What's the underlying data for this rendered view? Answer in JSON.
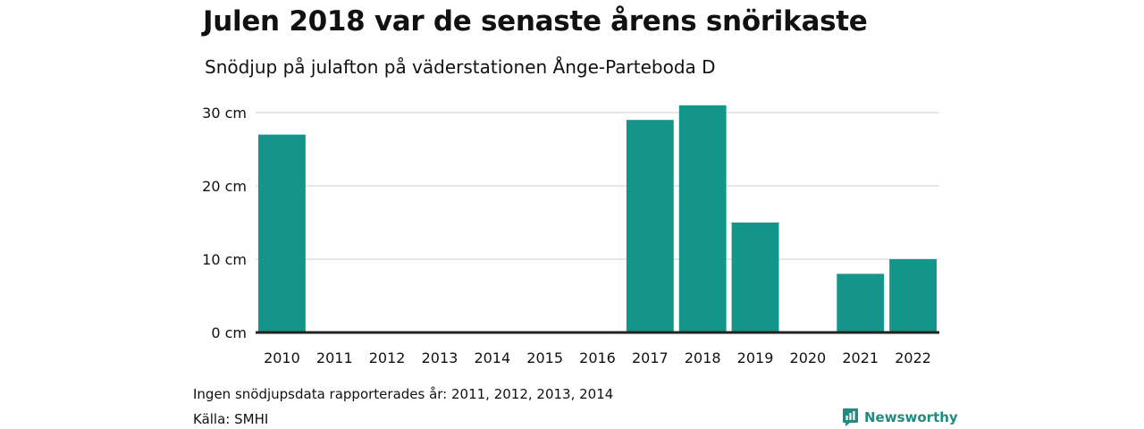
{
  "header": {
    "title": "Julen 2018 var de senaste årens snörikaste",
    "subtitle": "Snödjup på julafton på väderstationen Ånge-Parteboda D"
  },
  "footer": {
    "note": "Ingen snödjupsdata rapporterades år: 2011, 2012, 2013, 2014",
    "source": "Källa: SMHI",
    "logo_text": "Newsworthy"
  },
  "colors": {
    "bar": "#14958a",
    "brand": "#1e8c80",
    "grid": "#dddddd",
    "baseline": "#222222"
  },
  "chart_data": {
    "type": "bar",
    "categories": [
      "2010",
      "2011",
      "2012",
      "2013",
      "2014",
      "2015",
      "2016",
      "2017",
      "2018",
      "2019",
      "2020",
      "2021",
      "2022"
    ],
    "values": [
      27,
      0,
      0,
      0,
      0,
      0,
      0,
      29,
      31,
      15,
      0,
      8,
      10
    ],
    "title": "Julen 2018 var de senaste årens snörikaste",
    "subtitle": "Snödjup på julafton på väderstationen Ånge-Parteboda D",
    "xlabel": "",
    "ylabel": "",
    "ylim": [
      0,
      30
    ],
    "yticks": [
      0,
      10,
      20,
      30
    ],
    "ytick_labels": [
      "0 cm",
      "10 cm",
      "20 cm",
      "30 cm"
    ],
    "grid": true,
    "legend": "none"
  }
}
